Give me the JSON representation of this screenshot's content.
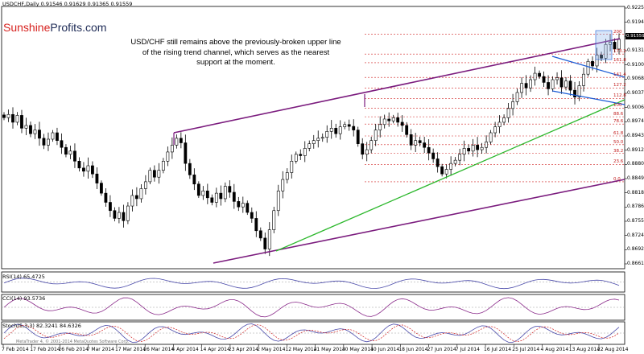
{
  "header": {
    "symbol_line": "USDCHF,Daily",
    "ohlc": "0.91546 0.91629 0.91365 0.91559"
  },
  "brand": {
    "part1": "Sunshine",
    "part2": "Profits.com"
  },
  "annotation": {
    "line1": "USD/CHF still remains above the previously-broken upper line",
    "line2": "of the rising trend channel, which serves as the nearest",
    "line3": "support at the moment."
  },
  "last_price_tag": "0.91559",
  "copyright": "MetaTrader 4, © 2001-2014 MetaQuotes Software Corp.",
  "indicators": {
    "rsi": "RSI(14) 65.4725",
    "cci": "CCI(14) 93.5736",
    "stoch": "Stoch(5,3,3) 82.3241 84.6326"
  },
  "colors": {
    "candle_up": "#ffffff",
    "candle_down": "#000000",
    "channel": "#7b1c7e",
    "support": "#2db82d",
    "flag": "#1a5cd6",
    "fib": "#d02020",
    "indicator": "#4a4aaa",
    "stoch_signal": "#d02020"
  },
  "chart_data": {
    "type": "candlestick",
    "symbol": "USDCHF",
    "timeframe": "Daily",
    "x_axis_labels": [
      "7 Feb 2014",
      "17 Feb 2014",
      "26 Feb 2014",
      "7 Mar 2014",
      "17 Mar 2014",
      "26 Mar 2014",
      "4 Apr 2014",
      "14 Apr 2014",
      "23 Apr 2014",
      "2 May 2014",
      "12 May 2014",
      "21 May 2014",
      "30 May 2014",
      "10 Jun 2014",
      "18 Jun 2014",
      "27 Jun 2014",
      "7 Jul 2014",
      "16 Jul 2014",
      "25 Jul 2014",
      "4 Aug 2014",
      "13 Aug 2014",
      "22 Aug 2014"
    ],
    "y_axis_labels": [
      "0.92255",
      "0.91940",
      "0.91559",
      "0.91315",
      "0.91000",
      "0.90685",
      "0.90375",
      "0.90060",
      "0.89745",
      "0.89435",
      "0.89120",
      "0.88805",
      "0.88490",
      "0.88180",
      "0.87865",
      "0.87550",
      "0.87240",
      "0.86925",
      "0.86610"
    ],
    "ylim": [
      0.8655,
      0.9228
    ],
    "fib_levels": [
      {
        "label": "0.0",
        "value": 0.8845
      },
      {
        "label": "23.6",
        "value": 0.8883
      },
      {
        "label": "38.2",
        "value": 0.8907
      },
      {
        "label": "50.0",
        "value": 0.8926
      },
      {
        "label": "61.8",
        "value": 0.8945
      },
      {
        "label": "78.6",
        "value": 0.8971
      },
      {
        "label": "88.6",
        "value": 0.8987
      },
      {
        "label": "100",
        "value": 0.9006
      },
      {
        "label": "112.8",
        "value": 0.9027
      },
      {
        "label": "127.2",
        "value": 0.905
      },
      {
        "label": "141.4",
        "value": 0.9073
      },
      {
        "label": "161.8",
        "value": 0.9105
      },
      {
        "label": "173.2",
        "value": 0.9124
      },
      {
        "label": "200",
        "value": 0.9167
      }
    ],
    "closes": [
      0.8985,
      0.8992,
      0.8975,
      0.899,
      0.8962,
      0.8968,
      0.895,
      0.8958,
      0.894,
      0.8925,
      0.8938,
      0.8952,
      0.8935,
      0.892,
      0.8905,
      0.8912,
      0.889,
      0.8875,
      0.8868,
      0.888,
      0.8862,
      0.8842,
      0.882,
      0.88,
      0.8782,
      0.8765,
      0.8778,
      0.876,
      0.8792,
      0.8815,
      0.8808,
      0.883,
      0.8845,
      0.887,
      0.8855,
      0.887,
      0.889,
      0.891,
      0.8925,
      0.894,
      0.893,
      0.8885,
      0.886,
      0.884,
      0.8815,
      0.8825,
      0.881,
      0.88,
      0.882,
      0.8808,
      0.8835,
      0.8822,
      0.8802,
      0.879,
      0.8798,
      0.8778,
      0.8765,
      0.8738,
      0.8722,
      0.8698,
      0.874,
      0.8782,
      0.8825,
      0.885,
      0.8865,
      0.889,
      0.8905,
      0.8902,
      0.8918,
      0.8928,
      0.8935,
      0.894,
      0.8942,
      0.8955,
      0.8962,
      0.895,
      0.8965,
      0.897,
      0.8966,
      0.8958,
      0.8928,
      0.8905,
      0.8915,
      0.8935,
      0.8958,
      0.897,
      0.8982,
      0.8978,
      0.8985,
      0.8975,
      0.8968,
      0.8948,
      0.8925,
      0.8935,
      0.893,
      0.892,
      0.8908,
      0.8895,
      0.8878,
      0.8862,
      0.8872,
      0.8885,
      0.8892,
      0.8905,
      0.8918,
      0.8912,
      0.8925,
      0.8915,
      0.892,
      0.8932,
      0.8952,
      0.8965,
      0.8975,
      0.8985,
      0.9005,
      0.902,
      0.904,
      0.906,
      0.905,
      0.9068,
      0.9082,
      0.9075,
      0.9062,
      0.9048,
      0.9068,
      0.9072,
      0.9052,
      0.9065,
      0.9045,
      0.903,
      0.9055,
      0.908,
      0.9108,
      0.9098,
      0.9122,
      0.9115,
      0.9145,
      0.915,
      0.9135,
      0.9156
    ]
  }
}
